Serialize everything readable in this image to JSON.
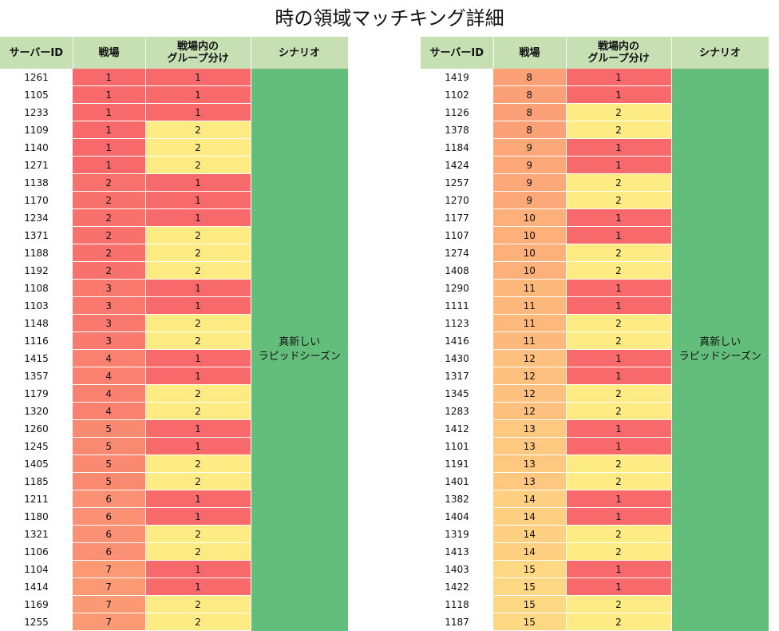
{
  "title": "時の領域マッチキング詳細",
  "headers": {
    "server_id": "サーバーID",
    "battlefield": "戦場",
    "group_line1": "戦場内の",
    "group_line2": "グループ分け",
    "scenario": "シナリオ"
  },
  "scenario_label_line1": "真新しい",
  "scenario_label_line2": "ラピッドシーズン",
  "colors": {
    "header_bg": "#c6e0b4",
    "scenario_bg": "#63be7b",
    "group_1": "#f8696b",
    "group_2": "#ffeb84",
    "battlefield_scale_low": "#f8696b",
    "battlefield_scale_high": "#ffd883"
  },
  "left_rows": [
    [
      "1261",
      "1",
      "1"
    ],
    [
      "1105",
      "1",
      "1"
    ],
    [
      "1233",
      "1",
      "1"
    ],
    [
      "1109",
      "1",
      "2"
    ],
    [
      "1140",
      "1",
      "2"
    ],
    [
      "1271",
      "1",
      "2"
    ],
    [
      "1138",
      "2",
      "1"
    ],
    [
      "1170",
      "2",
      "1"
    ],
    [
      "1234",
      "2",
      "1"
    ],
    [
      "1371",
      "2",
      "2"
    ],
    [
      "1188",
      "2",
      "2"
    ],
    [
      "1192",
      "2",
      "2"
    ],
    [
      "1108",
      "3",
      "1"
    ],
    [
      "1103",
      "3",
      "1"
    ],
    [
      "1148",
      "3",
      "2"
    ],
    [
      "1116",
      "3",
      "2"
    ],
    [
      "1415",
      "4",
      "1"
    ],
    [
      "1357",
      "4",
      "1"
    ],
    [
      "1179",
      "4",
      "2"
    ],
    [
      "1320",
      "4",
      "2"
    ],
    [
      "1260",
      "5",
      "1"
    ],
    [
      "1245",
      "5",
      "1"
    ],
    [
      "1405",
      "5",
      "2"
    ],
    [
      "1185",
      "5",
      "2"
    ],
    [
      "1211",
      "6",
      "1"
    ],
    [
      "1180",
      "6",
      "1"
    ],
    [
      "1321",
      "6",
      "2"
    ],
    [
      "1106",
      "6",
      "2"
    ],
    [
      "1104",
      "7",
      "1"
    ],
    [
      "1414",
      "7",
      "1"
    ],
    [
      "1169",
      "7",
      "2"
    ],
    [
      "1255",
      "7",
      "2"
    ]
  ],
  "right_rows": [
    [
      "1419",
      "8",
      "1"
    ],
    [
      "1102",
      "8",
      "1"
    ],
    [
      "1126",
      "8",
      "2"
    ],
    [
      "1378",
      "8",
      "2"
    ],
    [
      "1184",
      "9",
      "1"
    ],
    [
      "1424",
      "9",
      "1"
    ],
    [
      "1257",
      "9",
      "2"
    ],
    [
      "1270",
      "9",
      "2"
    ],
    [
      "1177",
      "10",
      "1"
    ],
    [
      "1107",
      "10",
      "1"
    ],
    [
      "1274",
      "10",
      "2"
    ],
    [
      "1408",
      "10",
      "2"
    ],
    [
      "1290",
      "11",
      "1"
    ],
    [
      "1111",
      "11",
      "1"
    ],
    [
      "1123",
      "11",
      "2"
    ],
    [
      "1416",
      "11",
      "2"
    ],
    [
      "1430",
      "12",
      "1"
    ],
    [
      "1317",
      "12",
      "1"
    ],
    [
      "1345",
      "12",
      "2"
    ],
    [
      "1283",
      "12",
      "2"
    ],
    [
      "1412",
      "13",
      "1"
    ],
    [
      "1101",
      "13",
      "1"
    ],
    [
      "1191",
      "13",
      "2"
    ],
    [
      "1401",
      "13",
      "2"
    ],
    [
      "1382",
      "14",
      "1"
    ],
    [
      "1404",
      "14",
      "1"
    ],
    [
      "1319",
      "14",
      "2"
    ],
    [
      "1413",
      "14",
      "2"
    ],
    [
      "1403",
      "15",
      "1"
    ],
    [
      "1422",
      "15",
      "1"
    ],
    [
      "1118",
      "15",
      "2"
    ],
    [
      "1187",
      "15",
      "2"
    ]
  ]
}
